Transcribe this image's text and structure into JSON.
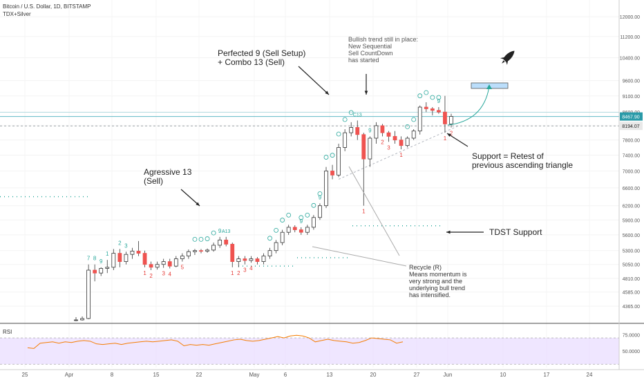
{
  "header": {
    "symbol_line": "Bitcoin / U.S. Dollar, 1D, BITSTAMP",
    "indicator": "TDX+Silver"
  },
  "colors": {
    "up": "#26a69a",
    "down": "#ef5350",
    "current_price_line": "#5fb8c4",
    "support_line": "#9aa0a6",
    "rsi_line": "#f57c00",
    "rsi_band": "#e8dbff",
    "setup_green": "#26a69a",
    "countdown_red": "#e53935",
    "box": "#bbdefb"
  },
  "chart_data": {
    "type": "candlestick",
    "title": "Bitcoin / U.S. Dollar, 1D, BITSTAMP",
    "yscale": "log",
    "ylim": [
      4150,
      12600
    ],
    "y_ticks": [
      4365,
      4585,
      4810,
      5050,
      5300,
      5600,
      5900,
      6200,
      6600,
      7000,
      7400,
      7800,
      8200,
      8600,
      9100,
      9600,
      10400,
      11200,
      12000
    ],
    "y_tick_labels": [
      "4365.00",
      "4585.00",
      "4810.00",
      "5050.00",
      "5300.00",
      "5600.00",
      "5900.00",
      "6200.00",
      "6600.00",
      "7000.00",
      "7400.00",
      "7800.00",
      "8200.00",
      "8600.00",
      "9100.00",
      "9600.00",
      "10400.00",
      "11200.00",
      "12000.00"
    ],
    "x_ticks": [
      "25",
      "Apr",
      "8",
      "15",
      "22",
      "May",
      "6",
      "13",
      "20",
      "27",
      "Jun",
      "10",
      "17",
      "24"
    ],
    "price_labels": {
      "current": "8467.90",
      "support": "8194.07"
    },
    "candles": [
      {
        "o": 4150,
        "h": 4200,
        "l": 4140,
        "c": 4160
      },
      {
        "o": 4160,
        "h": 4210,
        "l": 4150,
        "c": 4180
      },
      {
        "o": 4180,
        "h": 5050,
        "l": 4170,
        "c": 4950
      },
      {
        "o": 4950,
        "h": 5050,
        "l": 4760,
        "c": 4900
      },
      {
        "o": 4900,
        "h": 5000,
        "l": 4850,
        "c": 4980
      },
      {
        "o": 4980,
        "h": 5130,
        "l": 4900,
        "c": 5000
      },
      {
        "o": 5000,
        "h": 5330,
        "l": 4950,
        "c": 5250
      },
      {
        "o": 5250,
        "h": 5330,
        "l": 5000,
        "c": 5100
      },
      {
        "o": 5100,
        "h": 5280,
        "l": 5050,
        "c": 5230
      },
      {
        "o": 5230,
        "h": 5350,
        "l": 5150,
        "c": 5290
      },
      {
        "o": 5290,
        "h": 5480,
        "l": 5200,
        "c": 5250
      },
      {
        "o": 5250,
        "h": 5300,
        "l": 5000,
        "c": 5050
      },
      {
        "o": 5050,
        "h": 5100,
        "l": 4950,
        "c": 5000
      },
      {
        "o": 5000,
        "h": 5100,
        "l": 4960,
        "c": 5050
      },
      {
        "o": 5050,
        "h": 5150,
        "l": 4990,
        "c": 5100
      },
      {
        "o": 5100,
        "h": 5150,
        "l": 4980,
        "c": 5020
      },
      {
        "o": 5020,
        "h": 5200,
        "l": 5000,
        "c": 5150
      },
      {
        "o": 5150,
        "h": 5250,
        "l": 5100,
        "c": 5200
      },
      {
        "o": 5200,
        "h": 5320,
        "l": 5150,
        "c": 5280
      },
      {
        "o": 5280,
        "h": 5330,
        "l": 5220,
        "c": 5300
      },
      {
        "o": 5300,
        "h": 5330,
        "l": 5250,
        "c": 5290
      },
      {
        "o": 5290,
        "h": 5340,
        "l": 5260,
        "c": 5310
      },
      {
        "o": 5310,
        "h": 5450,
        "l": 5280,
        "c": 5400
      },
      {
        "o": 5400,
        "h": 5560,
        "l": 5350,
        "c": 5500
      },
      {
        "o": 5500,
        "h": 5560,
        "l": 5380,
        "c": 5420
      },
      {
        "o": 5420,
        "h": 5450,
        "l": 5000,
        "c": 5100
      },
      {
        "o": 5100,
        "h": 5200,
        "l": 5000,
        "c": 5150
      },
      {
        "o": 5150,
        "h": 5200,
        "l": 5050,
        "c": 5120
      },
      {
        "o": 5120,
        "h": 5200,
        "l": 5080,
        "c": 5150
      },
      {
        "o": 5150,
        "h": 5180,
        "l": 5050,
        "c": 5100
      },
      {
        "o": 5100,
        "h": 5250,
        "l": 5050,
        "c": 5200
      },
      {
        "o": 5200,
        "h": 5350,
        "l": 5150,
        "c": 5300
      },
      {
        "o": 5300,
        "h": 5500,
        "l": 5250,
        "c": 5450
      },
      {
        "o": 5450,
        "h": 5700,
        "l": 5400,
        "c": 5650
      },
      {
        "o": 5650,
        "h": 5800,
        "l": 5600,
        "c": 5750
      },
      {
        "o": 5750,
        "h": 5790,
        "l": 5650,
        "c": 5700
      },
      {
        "o": 5700,
        "h": 5750,
        "l": 5600,
        "c": 5650
      },
      {
        "o": 5650,
        "h": 5800,
        "l": 5600,
        "c": 5750
      },
      {
        "o": 5750,
        "h": 6000,
        "l": 5700,
        "c": 5950
      },
      {
        "o": 5950,
        "h": 6250,
        "l": 5900,
        "c": 6200
      },
      {
        "o": 6200,
        "h": 7100,
        "l": 6150,
        "c": 7000
      },
      {
        "o": 7000,
        "h": 7150,
        "l": 6800,
        "c": 6900
      },
      {
        "o": 6900,
        "h": 7700,
        "l": 6850,
        "c": 7600
      },
      {
        "o": 7600,
        "h": 8100,
        "l": 7500,
        "c": 8000
      },
      {
        "o": 8000,
        "h": 8300,
        "l": 7900,
        "c": 8150
      },
      {
        "o": 8150,
        "h": 8350,
        "l": 7800,
        "c": 7950
      },
      {
        "o": 7950,
        "h": 8000,
        "l": 6200,
        "c": 7300
      },
      {
        "o": 7300,
        "h": 7900,
        "l": 7100,
        "c": 7850
      },
      {
        "o": 7850,
        "h": 8300,
        "l": 7700,
        "c": 8200
      },
      {
        "o": 8200,
        "h": 8250,
        "l": 7900,
        "c": 8000
      },
      {
        "o": 8000,
        "h": 8050,
        "l": 7750,
        "c": 7900
      },
      {
        "o": 7900,
        "h": 8050,
        "l": 7700,
        "c": 7800
      },
      {
        "o": 7800,
        "h": 7900,
        "l": 7550,
        "c": 7650
      },
      {
        "o": 7650,
        "h": 7900,
        "l": 7600,
        "c": 7850
      },
      {
        "o": 7850,
        "h": 8100,
        "l": 7800,
        "c": 8050
      },
      {
        "o": 8050,
        "h": 8800,
        "l": 7950,
        "c": 8750
      },
      {
        "o": 8750,
        "h": 8900,
        "l": 8600,
        "c": 8700
      },
      {
        "o": 8700,
        "h": 8750,
        "l": 8500,
        "c": 8650
      },
      {
        "o": 8650,
        "h": 8750,
        "l": 8550,
        "c": 8600
      },
      {
        "o": 8600,
        "h": 9100,
        "l": 8000,
        "c": 8250
      },
      {
        "o": 8250,
        "h": 8550,
        "l": 8150,
        "c": 8470
      }
    ],
    "rsi": {
      "label": "RSI",
      "ylim": [
        25,
        90
      ],
      "band": [
        30,
        70
      ],
      "tick_labels": [
        "75.0000",
        "50.0000"
      ],
      "tick_values": [
        75,
        50
      ],
      "values": [
        55,
        54,
        62,
        63,
        64,
        62,
        64,
        63,
        65,
        66,
        65,
        61,
        60,
        61,
        62,
        60,
        62,
        63,
        64,
        65,
        64,
        65,
        66,
        67,
        65,
        58,
        60,
        59,
        60,
        59,
        61,
        63,
        65,
        67,
        68,
        66,
        65,
        66,
        68,
        70,
        72,
        70,
        73,
        74,
        73,
        70,
        64,
        66,
        68,
        66,
        65,
        64,
        62,
        63,
        66,
        70,
        69,
        68,
        67,
        62,
        64
      ]
    },
    "setup_labels": [
      {
        "i": 2,
        "t": "7"
      },
      {
        "i": 3,
        "t": "8"
      },
      {
        "i": 4,
        "t": "9"
      },
      {
        "i": 5,
        "t": "1"
      },
      {
        "i": 7,
        "t": "2"
      },
      {
        "i": 8,
        "t": "3"
      },
      {
        "i": 23,
        "t": "9"
      },
      {
        "i": 24,
        "t": "A13"
      },
      {
        "i": 36,
        "t": "9"
      },
      {
        "i": 39,
        "t": "9"
      },
      {
        "i": 45,
        "t": "C13"
      },
      {
        "i": 47,
        "t": "9"
      },
      {
        "i": 58,
        "t": "9"
      }
    ],
    "countdown_labels": [
      {
        "i": 11,
        "t": "1"
      },
      {
        "i": 12,
        "t": "2"
      },
      {
        "i": 14,
        "t": "3"
      },
      {
        "i": 15,
        "t": "4"
      },
      {
        "i": 17,
        "t": "5"
      },
      {
        "i": 25,
        "t": "1"
      },
      {
        "i": 26,
        "t": "2"
      },
      {
        "i": 27,
        "t": "3"
      },
      {
        "i": 28,
        "t": "4"
      },
      {
        "i": 46,
        "t": "1"
      },
      {
        "i": 49,
        "t": "2"
      },
      {
        "i": 50,
        "t": "3"
      },
      {
        "i": 52,
        "t": "1"
      },
      {
        "i": 59,
        "t": "1"
      },
      {
        "i": 60,
        "t": "2"
      }
    ]
  },
  "annotations": {
    "perfected": [
      "Perfected 9 (Sell Setup)",
      "+ Combo 13 (Sell)"
    ],
    "aggressive": [
      "Agressive 13",
      "(Sell)"
    ],
    "bullish": [
      "Bullish trend still in place:",
      "New Sequential",
      "Sell CountDown",
      "has started"
    ],
    "support": [
      "Support = Retest of",
      "previous ascending triangle"
    ],
    "tdst": "TDST Support",
    "recycle": [
      "Recycle (R)",
      "Means  momentum is",
      "very strong and the",
      "underlying bull trend",
      "has intensified."
    ]
  }
}
